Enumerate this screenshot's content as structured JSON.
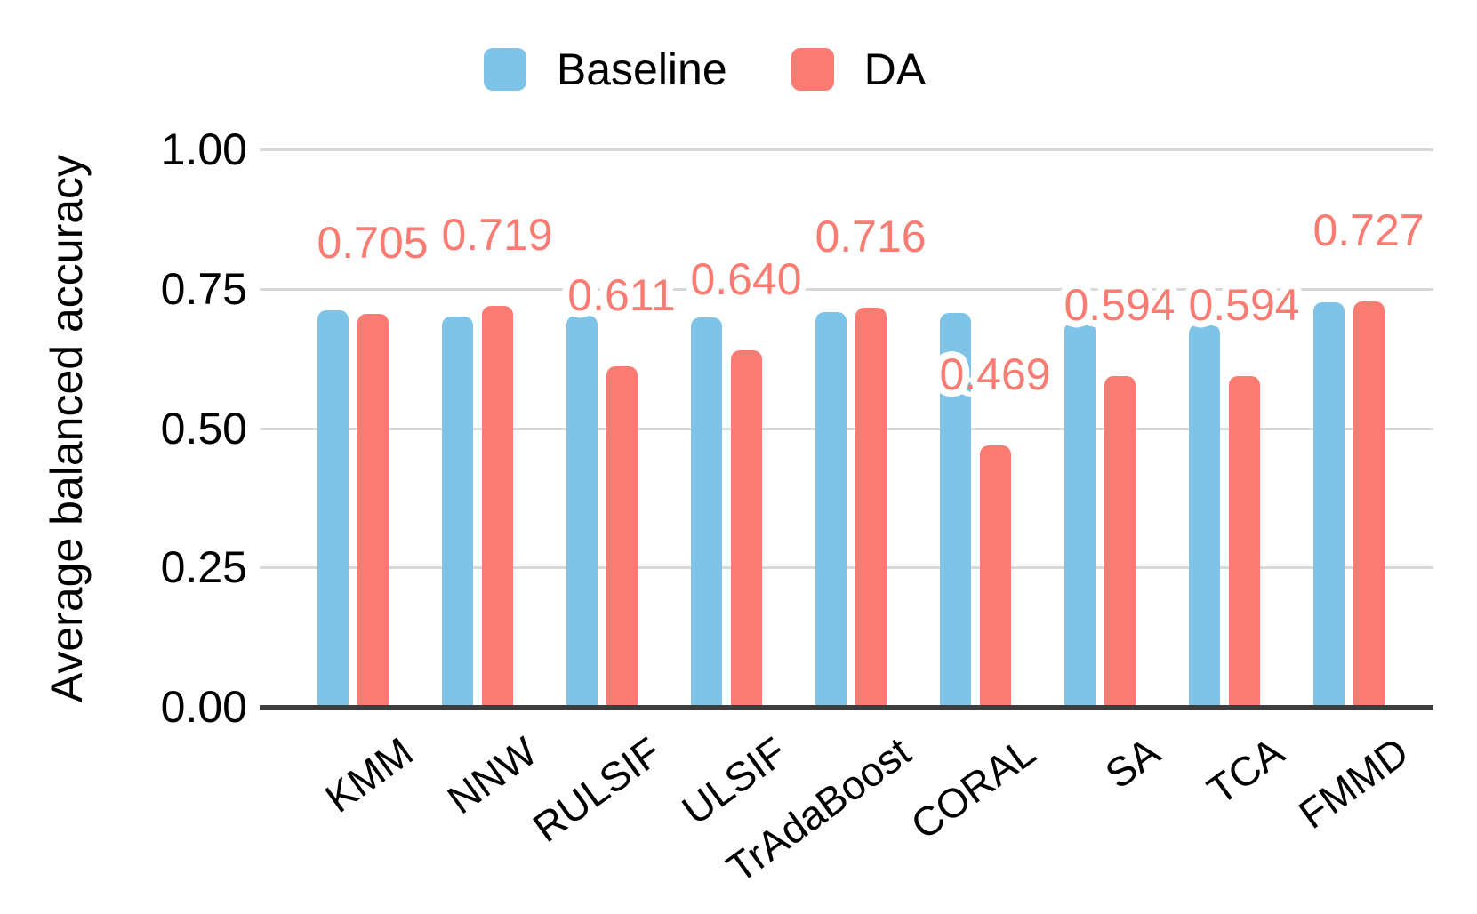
{
  "chart_data": {
    "type": "bar",
    "title": "",
    "xlabel": "",
    "ylabel": "Average balanced accuracy",
    "categories": [
      "KMM",
      "NNW",
      "RULSIF",
      "ULSIF",
      "TrAdaBoost",
      "CORAL",
      "SA",
      "TCA",
      "FMMD"
    ],
    "series": [
      {
        "name": "Baseline",
        "color": "#7EC3E8",
        "values": [
          0.712,
          0.7,
          0.701,
          0.699,
          0.708,
          0.706,
          0.69,
          0.686,
          0.725
        ]
      },
      {
        "name": "DA",
        "color": "#FA7B72",
        "values": [
          0.705,
          0.719,
          0.611,
          0.64,
          0.716,
          0.469,
          0.594,
          0.594,
          0.727
        ],
        "data_labels": [
          "0.705",
          "0.719",
          "0.611",
          "0.640",
          "0.716",
          "0.469",
          "0.594",
          "0.594",
          "0.727"
        ]
      }
    ],
    "ylim": [
      0,
      1
    ],
    "yticks": [
      {
        "value": 0.0,
        "label": "0.00"
      },
      {
        "value": 0.25,
        "label": "0.25"
      },
      {
        "value": 0.5,
        "label": "0.50"
      },
      {
        "value": 0.75,
        "label": "0.75"
      },
      {
        "value": 1.0,
        "label": "1.00"
      }
    ],
    "grid": true,
    "legend_position": "top",
    "colors": {
      "grid": "#D9D9D9",
      "axis": "#3D3D3D",
      "tick_text": "#000000",
      "data_label_text": "#FA7B72",
      "background": "#FFFFFF"
    }
  }
}
